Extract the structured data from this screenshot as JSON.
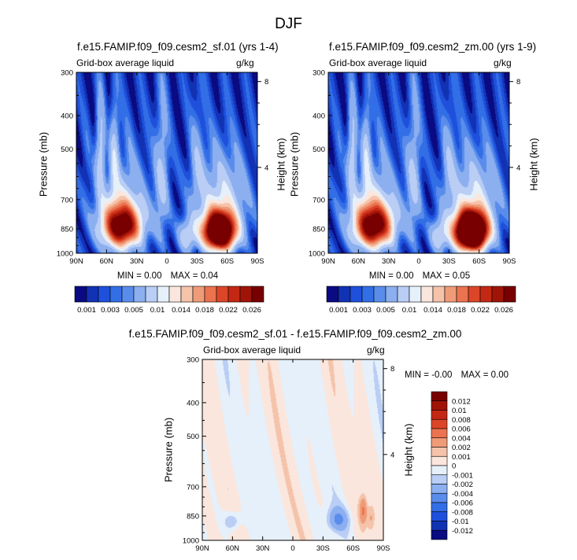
{
  "page": {
    "title": "DJF"
  },
  "chart_data": [
    {
      "type": "heatmap",
      "id": "p1",
      "title": "f.e15.FAMIP.f09_f09.cesm2_sf.01 (yrs 1-4)",
      "subtitle_left": "Grid-box average liquid",
      "subtitle_right": "g/kg",
      "xlabel": "",
      "ylabel": "Pressure (mb)",
      "ylabel_right": "Height (km)",
      "x_ticks": [
        "90N",
        "60N",
        "30N",
        "0",
        "30S",
        "60S",
        "90S"
      ],
      "y_ticks": [
        "300",
        "400",
        "500",
        "700",
        "850",
        "1000"
      ],
      "y_ticks_right": [
        "8",
        "4"
      ],
      "ylim": [
        1000,
        300
      ],
      "y_scale": "log",
      "min_label": "MIN =",
      "min_value": "0.00",
      "max_label": "MAX =",
      "max_value": "0.04",
      "features": [
        {
          "lat": 45,
          "p": 840,
          "value": 0.026
        },
        {
          "lat": -52,
          "p": 860,
          "value": 0.04
        }
      ]
    },
    {
      "type": "heatmap",
      "id": "p2",
      "title": "f.e15.FAMIP.f09_f09.cesm2_zm.00 (yrs 1-9)",
      "subtitle_left": "Grid-box average liquid",
      "subtitle_right": "g/kg",
      "xlabel": "",
      "ylabel": "Pressure (mb)",
      "ylabel_right": "Height (km)",
      "x_ticks": [
        "90N",
        "60N",
        "30N",
        "0",
        "30S",
        "60S",
        "90S"
      ],
      "y_ticks": [
        "300",
        "400",
        "500",
        "700",
        "850",
        "1000"
      ],
      "y_ticks_right": [
        "8",
        "4"
      ],
      "ylim": [
        1000,
        300
      ],
      "y_scale": "log",
      "min_label": "MIN =",
      "min_value": "0.00",
      "max_label": "MAX =",
      "max_value": "0.05",
      "features": [
        {
          "lat": 45,
          "p": 840,
          "value": 0.026
        },
        {
          "lat": -52,
          "p": 860,
          "value": 0.05
        }
      ]
    },
    {
      "type": "heatmap",
      "id": "p3",
      "title": "f.e15.FAMIP.f09_f09.cesm2_sf.01 - f.e15.FAMIP.f09_f09.cesm2_zm.00",
      "subtitle_left": "Grid-box average liquid",
      "subtitle_right": "g/kg",
      "xlabel": "",
      "ylabel": "Pressure (mb)",
      "ylabel_right": "Height (km)",
      "x_ticks": [
        "90N",
        "60N",
        "30N",
        "0",
        "30S",
        "60S",
        "90S"
      ],
      "y_ticks": [
        "300",
        "400",
        "500",
        "700",
        "850",
        "1000"
      ],
      "y_ticks_right": [
        "8",
        "4"
      ],
      "ylim": [
        1000,
        300
      ],
      "y_scale": "log",
      "min_label": "MIN =",
      "min_value": "-0.00",
      "max_label": "MAX =",
      "max_value": "0.00"
    }
  ],
  "colorbars": {
    "top": {
      "orientation": "horizontal",
      "colors": [
        "#0a0a82",
        "#1232b4",
        "#1e50dc",
        "#326ee6",
        "#5a8ceb",
        "#8caff0",
        "#b9cdf5",
        "#e6f0fa",
        "#fae6dc",
        "#f5c3aa",
        "#f09b78",
        "#eb7350",
        "#dc4628",
        "#c32814",
        "#a01408",
        "#780000"
      ],
      "labels": [
        "0.001",
        "0.003",
        "0.005",
        "0.01",
        "0.014",
        "0.018",
        "0.022",
        "0.026"
      ]
    },
    "diff": {
      "orientation": "vertical",
      "colors": [
        "#780000",
        "#a01408",
        "#c32814",
        "#dc4628",
        "#eb7350",
        "#f09b78",
        "#f5c3aa",
        "#fae6dc",
        "#e6f0fa",
        "#b9cdf5",
        "#8caff0",
        "#5a8ceb",
        "#326ee6",
        "#1e50dc",
        "#1232b4",
        "#0a0a82"
      ],
      "labels": [
        "0.012",
        "0.01",
        "0.008",
        "0.006",
        "0.004",
        "0.002",
        "0.001",
        "0",
        "-0.001",
        "-0.002",
        "-0.004",
        "-0.006",
        "-0.008",
        "-0.01",
        "-0.012"
      ]
    }
  }
}
